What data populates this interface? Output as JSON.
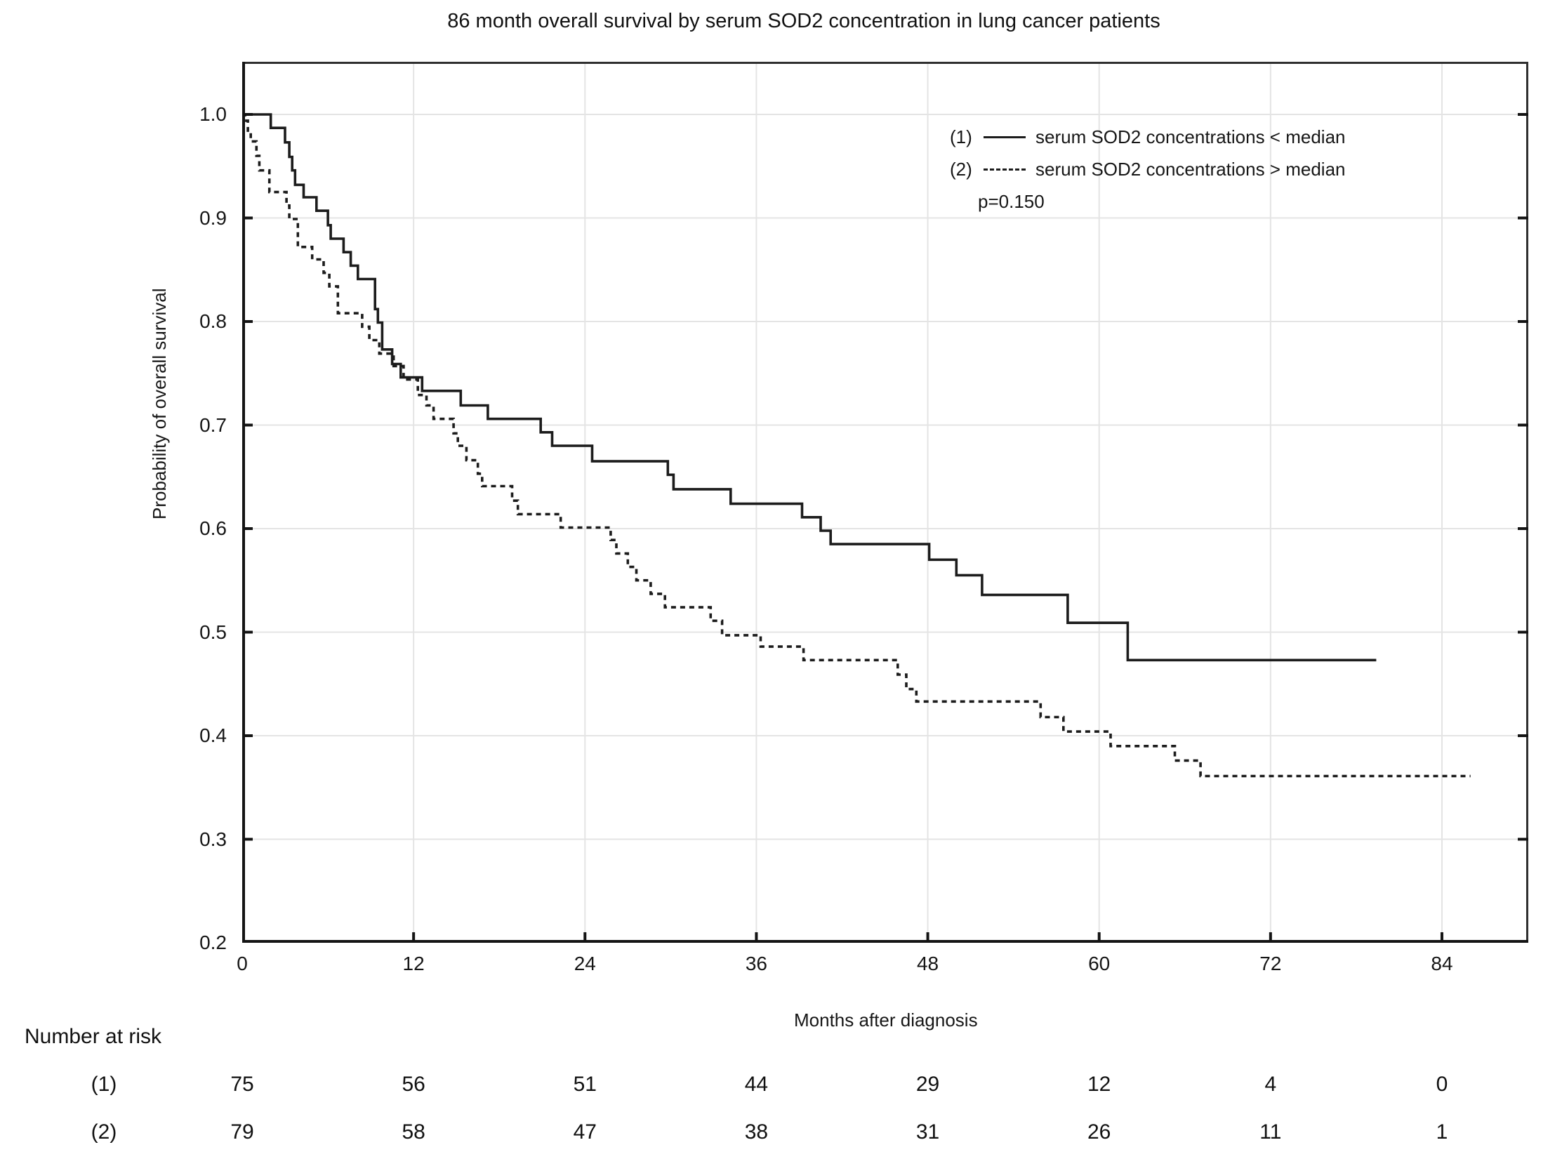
{
  "title": "86 month overall survival by serum SOD2 concentration in lung cancer patients",
  "colors": {
    "curve": "#1c1c1c",
    "grid": "#e4e4e4",
    "axis_frame": "#2f2f2f",
    "axis_main": "#141414",
    "background": "#ffffff",
    "text": "#161616"
  },
  "legend": {
    "items": [
      {
        "id": "(1)",
        "style": "solid",
        "label": "serum SOD2 concentrations < median"
      },
      {
        "id": "(2)",
        "style": "dashed",
        "label": "serum SOD2 concentrations > median"
      }
    ],
    "p_value": "p=0.150"
  },
  "y_axis_label": "Probability of overall survival",
  "x_axis_label": "Months after diagnosis",
  "at_risk": {
    "header": "Number at risk",
    "rows": [
      {
        "label": "(1)",
        "counts": [
          "75",
          "56",
          "51",
          "44",
          "29",
          "12",
          "4",
          "0"
        ]
      },
      {
        "label": "(2)",
        "counts": [
          "79",
          "58",
          "47",
          "38",
          "31",
          "26",
          "11",
          "1"
        ]
      }
    ]
  },
  "chart_data": {
    "type": "line",
    "subtype": "kaplan-meier-step",
    "title": "86 month overall survival by serum SOD2 concentration in lung cancer patients",
    "xlabel": "Months after diagnosis",
    "ylabel": "Probability of overall survival",
    "xlim": [
      0,
      84
    ],
    "ylim": [
      0.2,
      1.0
    ],
    "grid": true,
    "legend_position": "upper right inside",
    "x_ticks": [
      0,
      12,
      24,
      36,
      48,
      60,
      72,
      84
    ],
    "x_tick_labels": [
      "0",
      "12",
      "24",
      "36",
      "48",
      "60",
      "72",
      "84"
    ],
    "y_ticks": [
      0.2,
      0.3,
      0.4,
      0.5,
      0.6,
      0.7,
      0.8,
      0.9,
      1.0
    ],
    "y_tick_labels": [
      "0.2",
      "0.3",
      "0.4",
      "0.5",
      "0.6",
      "0.7",
      "0.8",
      "0.9",
      "1.0"
    ],
    "series": [
      {
        "name": "serum SOD2 concentrations < median",
        "id": "(1)",
        "style": "solid",
        "end_t": 79.4,
        "points": [
          [
            0,
            1.0
          ],
          [
            2.0,
            0.987
          ],
          [
            3.0,
            0.973
          ],
          [
            3.3,
            0.959
          ],
          [
            3.5,
            0.946
          ],
          [
            3.7,
            0.932
          ],
          [
            4.3,
            0.92
          ],
          [
            5.2,
            0.907
          ],
          [
            6.0,
            0.893
          ],
          [
            6.2,
            0.88
          ],
          [
            7.1,
            0.867
          ],
          [
            7.6,
            0.854
          ],
          [
            8.1,
            0.841
          ],
          [
            9.3,
            0.812
          ],
          [
            9.5,
            0.799
          ],
          [
            9.8,
            0.773
          ],
          [
            10.5,
            0.759
          ],
          [
            11.1,
            0.746
          ],
          [
            12.6,
            0.733
          ],
          [
            15.3,
            0.719
          ],
          [
            17.2,
            0.706
          ],
          [
            20.9,
            0.693
          ],
          [
            21.7,
            0.68
          ],
          [
            24.5,
            0.665
          ],
          [
            29.8,
            0.652
          ],
          [
            30.2,
            0.638
          ],
          [
            34.2,
            0.624
          ],
          [
            39.2,
            0.611
          ],
          [
            40.5,
            0.598
          ],
          [
            41.2,
            0.585
          ],
          [
            48.1,
            0.57
          ],
          [
            50.0,
            0.555
          ],
          [
            51.8,
            0.536
          ],
          [
            57.8,
            0.509
          ],
          [
            62.0,
            0.473
          ]
        ]
      },
      {
        "name": "serum SOD2 concentrations > median",
        "id": "(2)",
        "style": "dashed",
        "end_t": 86.0,
        "points": [
          [
            0,
            1.0
          ],
          [
            0.2,
            0.994
          ],
          [
            0.4,
            0.982
          ],
          [
            0.6,
            0.974
          ],
          [
            1.0,
            0.96
          ],
          [
            1.2,
            0.946
          ],
          [
            1.9,
            0.925
          ],
          [
            3.1,
            0.912
          ],
          [
            3.3,
            0.899
          ],
          [
            3.9,
            0.872
          ],
          [
            4.9,
            0.86
          ],
          [
            5.7,
            0.847
          ],
          [
            6.1,
            0.834
          ],
          [
            6.7,
            0.808
          ],
          [
            8.4,
            0.795
          ],
          [
            8.9,
            0.782
          ],
          [
            9.6,
            0.769
          ],
          [
            10.6,
            0.757
          ],
          [
            11.3,
            0.744
          ],
          [
            12.3,
            0.729
          ],
          [
            12.9,
            0.719
          ],
          [
            13.4,
            0.706
          ],
          [
            14.8,
            0.692
          ],
          [
            15.1,
            0.68
          ],
          [
            15.7,
            0.666
          ],
          [
            16.5,
            0.653
          ],
          [
            16.8,
            0.641
          ],
          [
            18.9,
            0.627
          ],
          [
            19.3,
            0.614
          ],
          [
            22.3,
            0.601
          ],
          [
            25.8,
            0.589
          ],
          [
            26.2,
            0.576
          ],
          [
            27.0,
            0.563
          ],
          [
            27.6,
            0.55
          ],
          [
            28.6,
            0.537
          ],
          [
            29.6,
            0.524
          ],
          [
            32.8,
            0.511
          ],
          [
            33.6,
            0.497
          ],
          [
            36.3,
            0.486
          ],
          [
            39.3,
            0.473
          ],
          [
            45.9,
            0.459
          ],
          [
            46.5,
            0.445
          ],
          [
            47.2,
            0.433
          ],
          [
            55.9,
            0.418
          ],
          [
            57.5,
            0.404
          ],
          [
            60.8,
            0.39
          ],
          [
            65.3,
            0.376
          ],
          [
            67.1,
            0.361
          ]
        ]
      }
    ],
    "p_value": "p=0.150"
  }
}
